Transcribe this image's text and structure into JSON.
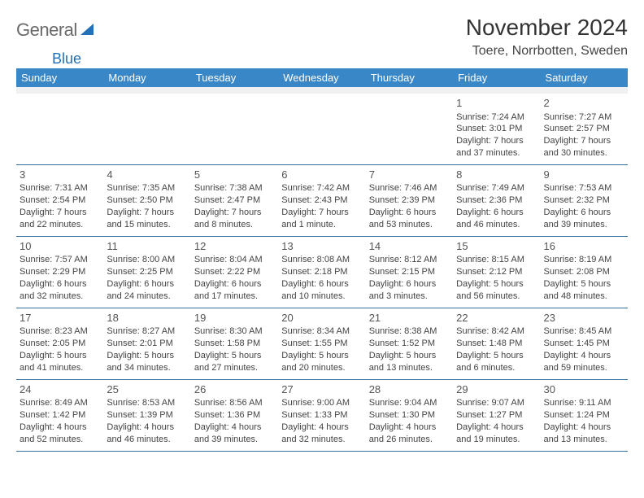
{
  "logo": {
    "text1": "General",
    "text2": "Blue"
  },
  "title": "November 2024",
  "location": "Toere, Norrbotten, Sweden",
  "day_headers": [
    "Sunday",
    "Monday",
    "Tuesday",
    "Wednesday",
    "Thursday",
    "Friday",
    "Saturday"
  ],
  "colors": {
    "header_bg": "#3a87c8",
    "header_fg": "#ffffff",
    "rule": "#3a6fa0",
    "logo_blue": "#2170b8",
    "logo_gray": "#6a6a6a"
  },
  "weeks": [
    [
      {
        "blank": true
      },
      {
        "blank": true
      },
      {
        "blank": true
      },
      {
        "blank": true
      },
      {
        "blank": true
      },
      {
        "day": "1",
        "sunrise": "Sunrise: 7:24 AM",
        "sunset": "Sunset: 3:01 PM",
        "daylight": "Daylight: 7 hours and 37 minutes."
      },
      {
        "day": "2",
        "sunrise": "Sunrise: 7:27 AM",
        "sunset": "Sunset: 2:57 PM",
        "daylight": "Daylight: 7 hours and 30 minutes."
      }
    ],
    [
      {
        "day": "3",
        "sunrise": "Sunrise: 7:31 AM",
        "sunset": "Sunset: 2:54 PM",
        "daylight": "Daylight: 7 hours and 22 minutes."
      },
      {
        "day": "4",
        "sunrise": "Sunrise: 7:35 AM",
        "sunset": "Sunset: 2:50 PM",
        "daylight": "Daylight: 7 hours and 15 minutes."
      },
      {
        "day": "5",
        "sunrise": "Sunrise: 7:38 AM",
        "sunset": "Sunset: 2:47 PM",
        "daylight": "Daylight: 7 hours and 8 minutes."
      },
      {
        "day": "6",
        "sunrise": "Sunrise: 7:42 AM",
        "sunset": "Sunset: 2:43 PM",
        "daylight": "Daylight: 7 hours and 1 minute."
      },
      {
        "day": "7",
        "sunrise": "Sunrise: 7:46 AM",
        "sunset": "Sunset: 2:39 PM",
        "daylight": "Daylight: 6 hours and 53 minutes."
      },
      {
        "day": "8",
        "sunrise": "Sunrise: 7:49 AM",
        "sunset": "Sunset: 2:36 PM",
        "daylight": "Daylight: 6 hours and 46 minutes."
      },
      {
        "day": "9",
        "sunrise": "Sunrise: 7:53 AM",
        "sunset": "Sunset: 2:32 PM",
        "daylight": "Daylight: 6 hours and 39 minutes."
      }
    ],
    [
      {
        "day": "10",
        "sunrise": "Sunrise: 7:57 AM",
        "sunset": "Sunset: 2:29 PM",
        "daylight": "Daylight: 6 hours and 32 minutes."
      },
      {
        "day": "11",
        "sunrise": "Sunrise: 8:00 AM",
        "sunset": "Sunset: 2:25 PM",
        "daylight": "Daylight: 6 hours and 24 minutes."
      },
      {
        "day": "12",
        "sunrise": "Sunrise: 8:04 AM",
        "sunset": "Sunset: 2:22 PM",
        "daylight": "Daylight: 6 hours and 17 minutes."
      },
      {
        "day": "13",
        "sunrise": "Sunrise: 8:08 AM",
        "sunset": "Sunset: 2:18 PM",
        "daylight": "Daylight: 6 hours and 10 minutes."
      },
      {
        "day": "14",
        "sunrise": "Sunrise: 8:12 AM",
        "sunset": "Sunset: 2:15 PM",
        "daylight": "Daylight: 6 hours and 3 minutes."
      },
      {
        "day": "15",
        "sunrise": "Sunrise: 8:15 AM",
        "sunset": "Sunset: 2:12 PM",
        "daylight": "Daylight: 5 hours and 56 minutes."
      },
      {
        "day": "16",
        "sunrise": "Sunrise: 8:19 AM",
        "sunset": "Sunset: 2:08 PM",
        "daylight": "Daylight: 5 hours and 48 minutes."
      }
    ],
    [
      {
        "day": "17",
        "sunrise": "Sunrise: 8:23 AM",
        "sunset": "Sunset: 2:05 PM",
        "daylight": "Daylight: 5 hours and 41 minutes."
      },
      {
        "day": "18",
        "sunrise": "Sunrise: 8:27 AM",
        "sunset": "Sunset: 2:01 PM",
        "daylight": "Daylight: 5 hours and 34 minutes."
      },
      {
        "day": "19",
        "sunrise": "Sunrise: 8:30 AM",
        "sunset": "Sunset: 1:58 PM",
        "daylight": "Daylight: 5 hours and 27 minutes."
      },
      {
        "day": "20",
        "sunrise": "Sunrise: 8:34 AM",
        "sunset": "Sunset: 1:55 PM",
        "daylight": "Daylight: 5 hours and 20 minutes."
      },
      {
        "day": "21",
        "sunrise": "Sunrise: 8:38 AM",
        "sunset": "Sunset: 1:52 PM",
        "daylight": "Daylight: 5 hours and 13 minutes."
      },
      {
        "day": "22",
        "sunrise": "Sunrise: 8:42 AM",
        "sunset": "Sunset: 1:48 PM",
        "daylight": "Daylight: 5 hours and 6 minutes."
      },
      {
        "day": "23",
        "sunrise": "Sunrise: 8:45 AM",
        "sunset": "Sunset: 1:45 PM",
        "daylight": "Daylight: 4 hours and 59 minutes."
      }
    ],
    [
      {
        "day": "24",
        "sunrise": "Sunrise: 8:49 AM",
        "sunset": "Sunset: 1:42 PM",
        "daylight": "Daylight: 4 hours and 52 minutes."
      },
      {
        "day": "25",
        "sunrise": "Sunrise: 8:53 AM",
        "sunset": "Sunset: 1:39 PM",
        "daylight": "Daylight: 4 hours and 46 minutes."
      },
      {
        "day": "26",
        "sunrise": "Sunrise: 8:56 AM",
        "sunset": "Sunset: 1:36 PM",
        "daylight": "Daylight: 4 hours and 39 minutes."
      },
      {
        "day": "27",
        "sunrise": "Sunrise: 9:00 AM",
        "sunset": "Sunset: 1:33 PM",
        "daylight": "Daylight: 4 hours and 32 minutes."
      },
      {
        "day": "28",
        "sunrise": "Sunrise: 9:04 AM",
        "sunset": "Sunset: 1:30 PM",
        "daylight": "Daylight: 4 hours and 26 minutes."
      },
      {
        "day": "29",
        "sunrise": "Sunrise: 9:07 AM",
        "sunset": "Sunset: 1:27 PM",
        "daylight": "Daylight: 4 hours and 19 minutes."
      },
      {
        "day": "30",
        "sunrise": "Sunrise: 9:11 AM",
        "sunset": "Sunset: 1:24 PM",
        "daylight": "Daylight: 4 hours and 13 minutes."
      }
    ]
  ]
}
